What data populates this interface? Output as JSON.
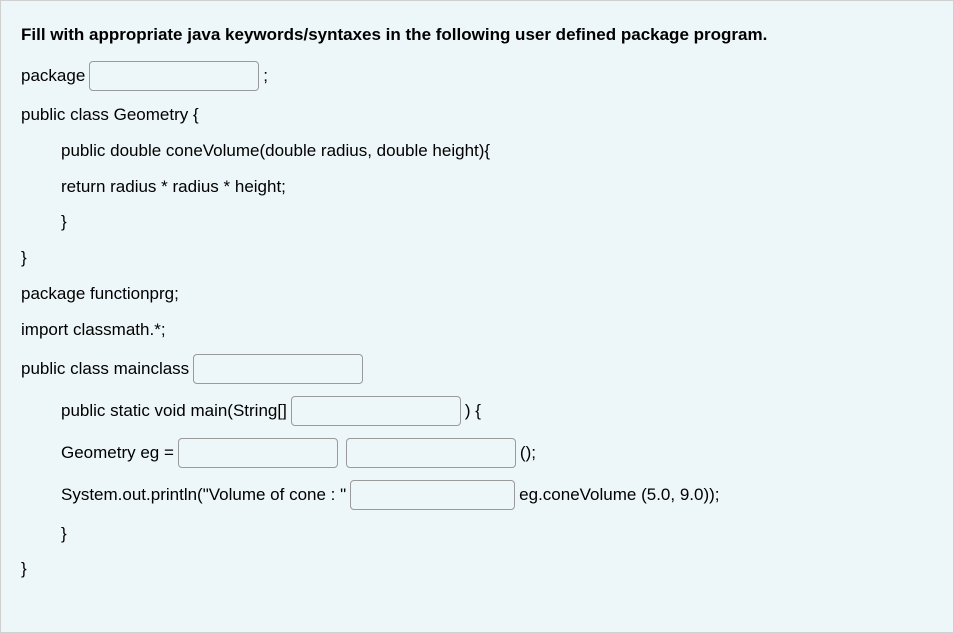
{
  "title": "Fill  with appropriate java keywords/syntaxes in the following user defined package program.",
  "lines": {
    "l1a": "package",
    "l1b": ";",
    "l2": "public class Geometry {",
    "l3": "public double coneVolume(double radius, double height){",
    "l4": "return radius * radius * height;",
    "l5": "}",
    "l6": "}",
    "l7": "package functionprg;",
    "l8": "import classmath.*;",
    "l9": "public class mainclass",
    "l10a": "public static void main(String[]",
    "l10b": ") {",
    "l11a": "Geometry eg =",
    "l11b": "();",
    "l12a": "System.out.println(\"Volume of cone : \"",
    "l12b": "eg.coneVolume (5.0, 9.0));",
    "l13": "}",
    "l14": "}"
  },
  "styling": {
    "background_color": "#edf6f8",
    "border_color": "#d0d0d0",
    "title_font_weight": 700,
    "font_size": 17,
    "text_color": "#000000",
    "blank_border_color": "#9a9a9a",
    "blank_border_radius": 4,
    "blank_height": 30
  }
}
